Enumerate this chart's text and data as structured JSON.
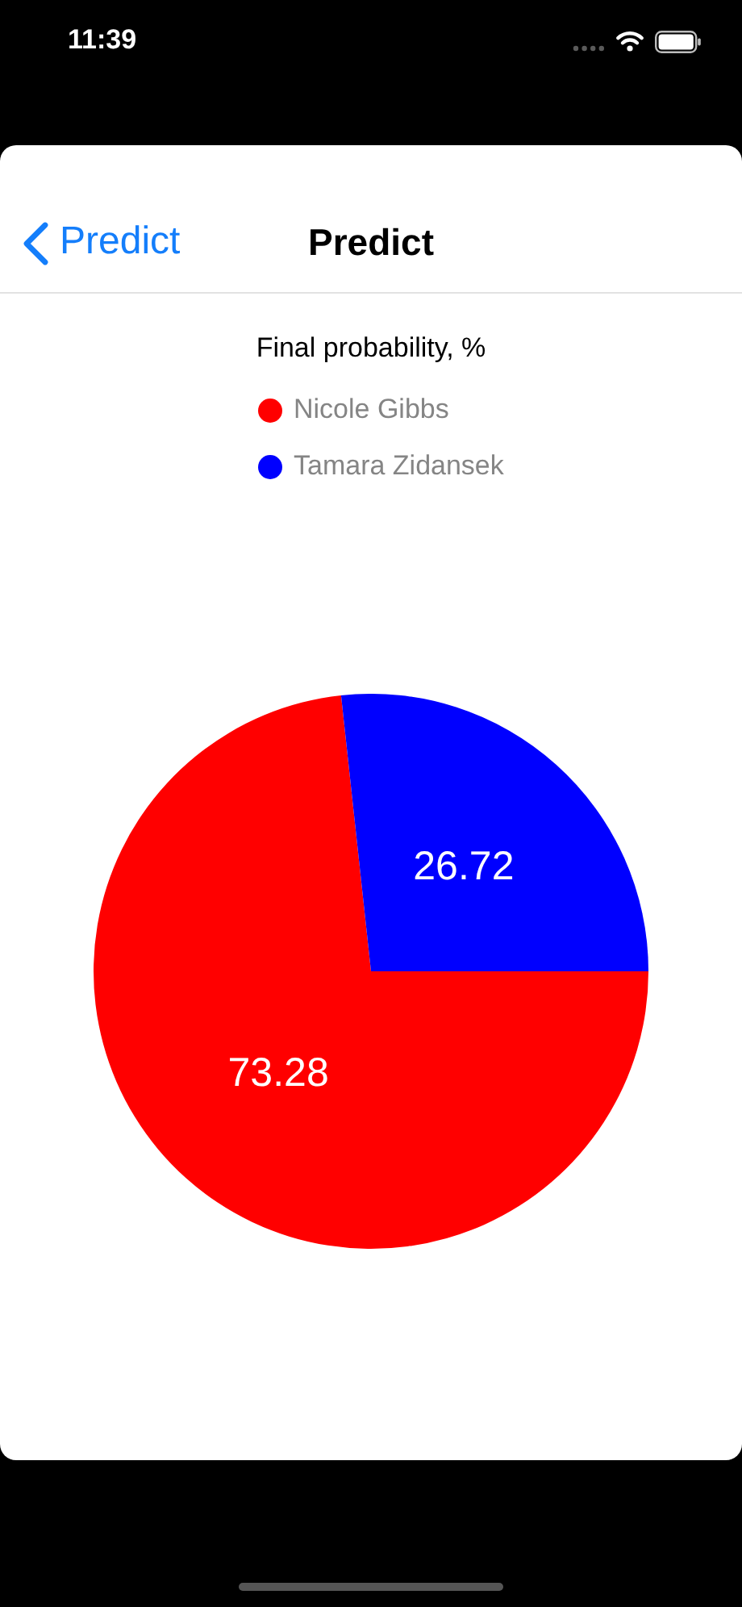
{
  "chart_data": {
    "type": "pie",
    "title": "Final probability, %",
    "categories": [
      "Nicole Gibbs",
      "Tamara Zidansek"
    ],
    "values": [
      73.28,
      26.72
    ],
    "colors": [
      "#ff0000",
      "#0000ff"
    ],
    "legend": "top",
    "data_labels": true,
    "annotations": [
      "11:39",
      "Predict",
      "Predict"
    ]
  }
}
